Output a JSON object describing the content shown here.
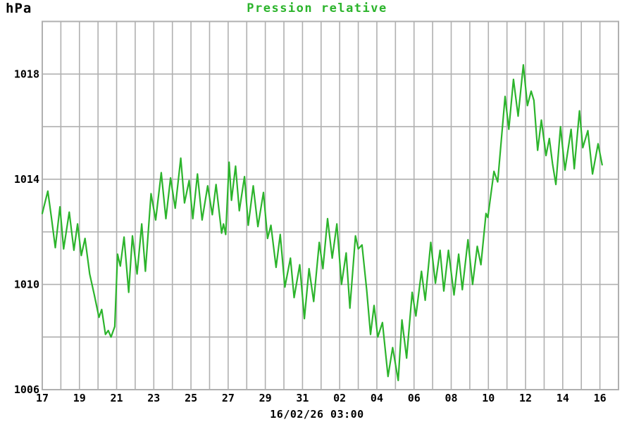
{
  "header": {
    "unit_label": "hPa",
    "title": "Pression relative"
  },
  "footer": {
    "timestamp": "16/02/26 03:00"
  },
  "colors": {
    "line": "#2cb42c",
    "title": "#2cb42c",
    "grid": "#b0b0b0",
    "text": "#000000",
    "background": "#ffffff"
  },
  "chart_data": {
    "type": "line",
    "title": "Pression relative",
    "ylabel": "hPa",
    "xlabel": "",
    "legend": "none",
    "grid": true,
    "x_unit": "days (17 Jan - 16 Feb)",
    "x_range": [
      0,
      31
    ],
    "x_gridline_step": 1,
    "x_tick_positions": [
      0,
      2,
      4,
      6,
      8,
      10,
      12,
      14,
      16,
      18,
      20,
      22,
      24,
      26,
      28,
      30
    ],
    "x_tick_labels": [
      "17",
      "19",
      "21",
      "23",
      "25",
      "27",
      "29",
      "31",
      "02",
      "04",
      "06",
      "08",
      "10",
      "12",
      "14",
      "16"
    ],
    "y_range": [
      1006,
      1020
    ],
    "y_gridline_step": 2,
    "y_ticks": [
      1006,
      1010,
      1014,
      1018
    ],
    "current_time_label": "16/02/26 03:00",
    "series": [
      {
        "name": "Pression relative",
        "color": "#2cb42c",
        "points": [
          [
            0.0,
            1012.7
          ],
          [
            0.3,
            1013.55
          ],
          [
            0.5,
            1012.5
          ],
          [
            0.7,
            1011.4
          ],
          [
            0.95,
            1012.95
          ],
          [
            1.15,
            1011.35
          ],
          [
            1.45,
            1012.75
          ],
          [
            1.7,
            1011.3
          ],
          [
            1.9,
            1012.3
          ],
          [
            2.1,
            1011.1
          ],
          [
            2.3,
            1011.75
          ],
          [
            2.55,
            1010.4
          ],
          [
            2.8,
            1009.6
          ],
          [
            3.05,
            1008.75
          ],
          [
            3.2,
            1009.05
          ],
          [
            3.4,
            1008.1
          ],
          [
            3.55,
            1008.25
          ],
          [
            3.7,
            1008.0
          ],
          [
            3.9,
            1008.4
          ],
          [
            4.05,
            1011.15
          ],
          [
            4.2,
            1010.7
          ],
          [
            4.4,
            1011.8
          ],
          [
            4.65,
            1009.7
          ],
          [
            4.85,
            1011.85
          ],
          [
            5.1,
            1010.4
          ],
          [
            5.35,
            1012.3
          ],
          [
            5.55,
            1010.5
          ],
          [
            5.85,
            1013.45
          ],
          [
            6.1,
            1012.45
          ],
          [
            6.4,
            1014.25
          ],
          [
            6.65,
            1012.5
          ],
          [
            6.9,
            1014.05
          ],
          [
            7.15,
            1012.9
          ],
          [
            7.45,
            1014.8
          ],
          [
            7.65,
            1013.1
          ],
          [
            7.9,
            1013.95
          ],
          [
            8.1,
            1012.5
          ],
          [
            8.35,
            1014.2
          ],
          [
            8.6,
            1012.45
          ],
          [
            8.9,
            1013.75
          ],
          [
            9.15,
            1012.65
          ],
          [
            9.35,
            1013.8
          ],
          [
            9.65,
            1011.95
          ],
          [
            9.75,
            1012.3
          ],
          [
            9.87,
            1011.9
          ],
          [
            10.05,
            1014.65
          ],
          [
            10.18,
            1013.2
          ],
          [
            10.4,
            1014.5
          ],
          [
            10.6,
            1012.8
          ],
          [
            10.88,
            1014.1
          ],
          [
            11.08,
            1012.25
          ],
          [
            11.35,
            1013.75
          ],
          [
            11.6,
            1012.2
          ],
          [
            11.9,
            1013.5
          ],
          [
            12.12,
            1011.75
          ],
          [
            12.3,
            1012.25
          ],
          [
            12.58,
            1010.65
          ],
          [
            12.8,
            1011.9
          ],
          [
            13.05,
            1009.9
          ],
          [
            13.35,
            1011.0
          ],
          [
            13.55,
            1009.5
          ],
          [
            13.85,
            1010.75
          ],
          [
            14.1,
            1008.7
          ],
          [
            14.35,
            1010.6
          ],
          [
            14.6,
            1009.35
          ],
          [
            14.9,
            1011.6
          ],
          [
            15.1,
            1010.6
          ],
          [
            15.35,
            1012.5
          ],
          [
            15.6,
            1011.0
          ],
          [
            15.85,
            1012.3
          ],
          [
            16.1,
            1010.0
          ],
          [
            16.35,
            1011.2
          ],
          [
            16.55,
            1009.1
          ],
          [
            16.85,
            1011.85
          ],
          [
            17.0,
            1011.35
          ],
          [
            17.2,
            1011.5
          ],
          [
            17.45,
            1009.8
          ],
          [
            17.66,
            1008.1
          ],
          [
            17.85,
            1009.2
          ],
          [
            18.05,
            1008.0
          ],
          [
            18.3,
            1008.55
          ],
          [
            18.6,
            1006.5
          ],
          [
            18.85,
            1007.6
          ],
          [
            19.15,
            1006.35
          ],
          [
            19.35,
            1008.65
          ],
          [
            19.6,
            1007.2
          ],
          [
            19.9,
            1009.7
          ],
          [
            20.1,
            1008.8
          ],
          [
            20.4,
            1010.5
          ],
          [
            20.6,
            1009.4
          ],
          [
            20.9,
            1011.6
          ],
          [
            21.15,
            1010.05
          ],
          [
            21.4,
            1011.3
          ],
          [
            21.6,
            1009.75
          ],
          [
            21.85,
            1011.3
          ],
          [
            22.15,
            1009.6
          ],
          [
            22.4,
            1011.15
          ],
          [
            22.6,
            1009.8
          ],
          [
            22.9,
            1011.7
          ],
          [
            23.15,
            1010.0
          ],
          [
            23.4,
            1011.45
          ],
          [
            23.6,
            1010.75
          ],
          [
            23.87,
            1012.7
          ],
          [
            23.97,
            1012.55
          ],
          [
            24.3,
            1014.3
          ],
          [
            24.5,
            1013.9
          ],
          [
            24.9,
            1017.15
          ],
          [
            25.1,
            1015.9
          ],
          [
            25.35,
            1017.8
          ],
          [
            25.6,
            1016.4
          ],
          [
            25.88,
            1018.35
          ],
          [
            26.1,
            1016.8
          ],
          [
            26.3,
            1017.35
          ],
          [
            26.45,
            1017.0
          ],
          [
            26.65,
            1015.1
          ],
          [
            26.85,
            1016.25
          ],
          [
            27.1,
            1014.9
          ],
          [
            27.28,
            1015.55
          ],
          [
            27.45,
            1014.6
          ],
          [
            27.63,
            1013.8
          ],
          [
            27.88,
            1016.0
          ],
          [
            28.12,
            1014.35
          ],
          [
            28.45,
            1015.9
          ],
          [
            28.62,
            1014.4
          ],
          [
            28.9,
            1016.6
          ],
          [
            29.08,
            1015.2
          ],
          [
            29.35,
            1015.85
          ],
          [
            29.6,
            1014.2
          ],
          [
            29.9,
            1015.35
          ],
          [
            30.12,
            1014.55
          ]
        ]
      }
    ]
  }
}
